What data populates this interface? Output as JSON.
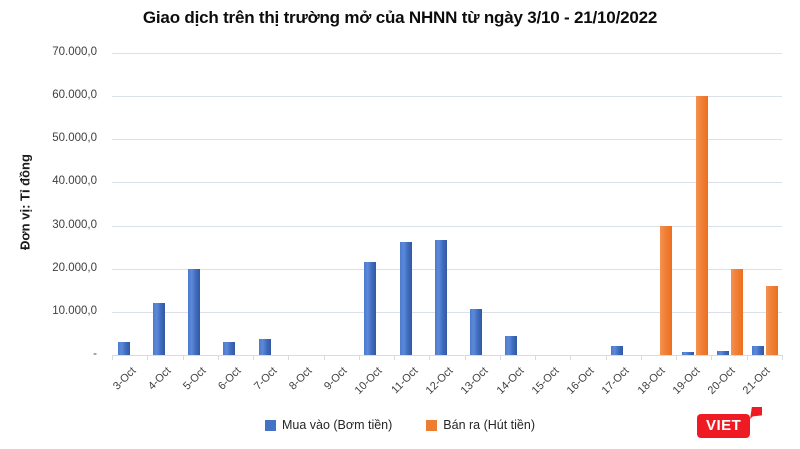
{
  "title": "Giao dịch trên thị trường mở của NHNN từ ngày 3/10 - 21/10/2022",
  "y_axis": {
    "unit_label": "Đơn vị: Tỉ đồng",
    "tick_labels": [
      "70.000,0",
      "60.000,0",
      "50.000,0",
      "40.000,0",
      "30.000,0",
      "20.000,0",
      "10.000,0",
      "-"
    ]
  },
  "legend": [
    {
      "label": "Mua vào (Bơm tiền)",
      "color": "#4472c4"
    },
    {
      "label": "Bán ra (Hút tiền)",
      "color": "#ed7d31"
    }
  ],
  "logo": {
    "text": "VIET",
    "color": "#ee1b24"
  },
  "chart_data": {
    "type": "bar",
    "title": "Giao dịch trên thị trường mở của NHNN từ ngày 3/10 - 21/10/2022",
    "xlabel": "",
    "ylabel": "Đơn vị: Tỉ đồng",
    "ylim": [
      0,
      70000
    ],
    "grid": true,
    "legend_position": "bottom",
    "categories": [
      "3-Oct",
      "4-Oct",
      "5-Oct",
      "6-Oct",
      "7-Oct",
      "8-Oct",
      "9-Oct",
      "10-Oct",
      "11-Oct",
      "12-Oct",
      "13-Oct",
      "14-Oct",
      "15-Oct",
      "16-Oct",
      "17-Oct",
      "18-Oct",
      "19-Oct",
      "20-Oct",
      "21-Oct"
    ],
    "series": [
      {
        "name": "Mua vào (Bơm tiền)",
        "color": "#4472c4",
        "values": [
          3000,
          12000,
          20000,
          3000,
          3800,
          0,
          0,
          21500,
          26200,
          26700,
          10700,
          4500,
          0,
          0,
          2000,
          0,
          600,
          1000,
          2000
        ]
      },
      {
        "name": "Bán ra (Hút tiền)",
        "color": "#ed7d31",
        "values": [
          0,
          0,
          0,
          0,
          0,
          0,
          0,
          0,
          0,
          0,
          0,
          0,
          0,
          0,
          0,
          30000,
          60000,
          20000,
          16000
        ]
      }
    ]
  }
}
